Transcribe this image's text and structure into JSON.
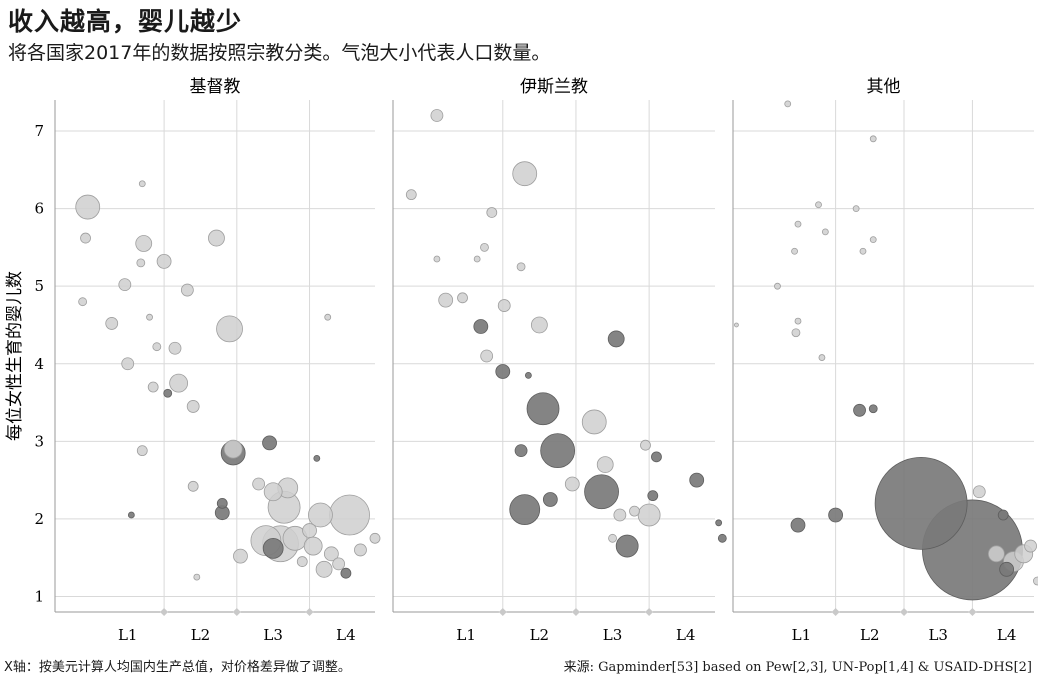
{
  "title": "收入越高，婴儿越少",
  "subtitle": "将各国家2017年的数据按照宗教分类。气泡大小代表人口数量。",
  "footnote": "X轴：按美元计算人均国内生产总值，对价格差异做了调整。",
  "source": "来源: Gapminder[53] based on Pew[2,3], UN-Pop[1,4] & USAID-DHS[2]",
  "colors": {
    "light": "#cfcfcf",
    "dark": "#7a7a7a",
    "grid": "#d9d9d9",
    "axis": "#9a9a9a",
    "marker": "#c9c9c9"
  },
  "chart_data": {
    "type": "scatter",
    "ylabel": "每位女性生育的婴儿数",
    "ylim": [
      0.8,
      7.4
    ],
    "yticks": [
      1,
      2,
      3,
      4,
      5,
      6,
      7
    ],
    "xlim": [
      0,
      4.4
    ],
    "level_boundaries": [
      1.5,
      2.5,
      3.5
    ],
    "xtick_labels": [
      {
        "label": "L1",
        "x": 1.0
      },
      {
        "label": "L2",
        "x": 2.0
      },
      {
        "label": "L3",
        "x": 3.0
      },
      {
        "label": "L4",
        "x": 4.0
      }
    ],
    "grid": true,
    "panels": [
      {
        "name": "基督教",
        "points": [
          {
            "x": 0.45,
            "y": 6.02,
            "r": 12,
            "dark": false
          },
          {
            "x": 1.2,
            "y": 6.32,
            "r": 3,
            "dark": false
          },
          {
            "x": 0.42,
            "y": 5.62,
            "r": 5,
            "dark": false
          },
          {
            "x": 1.22,
            "y": 5.55,
            "r": 8,
            "dark": false
          },
          {
            "x": 1.5,
            "y": 5.32,
            "r": 7,
            "dark": false
          },
          {
            "x": 2.22,
            "y": 5.62,
            "r": 8,
            "dark": false
          },
          {
            "x": 1.18,
            "y": 5.3,
            "r": 4,
            "dark": false
          },
          {
            "x": 0.96,
            "y": 5.02,
            "r": 6,
            "dark": false
          },
          {
            "x": 1.82,
            "y": 4.95,
            "r": 6,
            "dark": false
          },
          {
            "x": 0.38,
            "y": 4.8,
            "r": 4,
            "dark": false
          },
          {
            "x": 0.78,
            "y": 4.52,
            "r": 6,
            "dark": false
          },
          {
            "x": 1.3,
            "y": 4.6,
            "r": 3,
            "dark": false
          },
          {
            "x": 2.4,
            "y": 4.45,
            "r": 13,
            "dark": false
          },
          {
            "x": 1.65,
            "y": 4.2,
            "r": 6,
            "dark": false
          },
          {
            "x": 1.0,
            "y": 4.0,
            "r": 6,
            "dark": false
          },
          {
            "x": 1.4,
            "y": 4.22,
            "r": 4,
            "dark": false
          },
          {
            "x": 1.7,
            "y": 3.75,
            "r": 9,
            "dark": false
          },
          {
            "x": 1.35,
            "y": 3.7,
            "r": 5,
            "dark": false
          },
          {
            "x": 1.55,
            "y": 3.62,
            "r": 4,
            "dark": true
          },
          {
            "x": 1.9,
            "y": 3.45,
            "r": 6,
            "dark": false
          },
          {
            "x": 2.45,
            "y": 2.9,
            "r": 9,
            "dark": false
          },
          {
            "x": 2.45,
            "y": 2.85,
            "r": 12,
            "dark": true
          },
          {
            "x": 2.95,
            "y": 2.98,
            "r": 7,
            "dark": true
          },
          {
            "x": 1.2,
            "y": 2.88,
            "r": 5,
            "dark": false
          },
          {
            "x": 2.8,
            "y": 2.45,
            "r": 6,
            "dark": false
          },
          {
            "x": 3.0,
            "y": 2.35,
            "r": 9,
            "dark": false
          },
          {
            "x": 3.2,
            "y": 2.4,
            "r": 10,
            "dark": false
          },
          {
            "x": 1.9,
            "y": 2.42,
            "r": 5,
            "dark": false
          },
          {
            "x": 2.3,
            "y": 2.2,
            "r": 5,
            "dark": true
          },
          {
            "x": 2.3,
            "y": 2.08,
            "r": 7,
            "dark": true
          },
          {
            "x": 3.15,
            "y": 2.15,
            "r": 16,
            "dark": false
          },
          {
            "x": 3.5,
            "y": 1.85,
            "r": 7,
            "dark": false
          },
          {
            "x": 3.65,
            "y": 2.05,
            "r": 12,
            "dark": false
          },
          {
            "x": 4.05,
            "y": 2.05,
            "r": 20,
            "dark": false
          },
          {
            "x": 2.9,
            "y": 1.72,
            "r": 15,
            "dark": false
          },
          {
            "x": 3.1,
            "y": 1.68,
            "r": 18,
            "dark": false
          },
          {
            "x": 3.3,
            "y": 1.75,
            "r": 12,
            "dark": false
          },
          {
            "x": 3.55,
            "y": 1.65,
            "r": 9,
            "dark": false
          },
          {
            "x": 3.0,
            "y": 1.62,
            "r": 10,
            "dark": true
          },
          {
            "x": 2.55,
            "y": 1.52,
            "r": 7,
            "dark": false
          },
          {
            "x": 3.8,
            "y": 1.55,
            "r": 7,
            "dark": false
          },
          {
            "x": 3.9,
            "y": 1.42,
            "r": 6,
            "dark": false
          },
          {
            "x": 3.7,
            "y": 1.35,
            "r": 8,
            "dark": false
          },
          {
            "x": 4.0,
            "y": 1.3,
            "r": 5,
            "dark": true
          },
          {
            "x": 3.4,
            "y": 1.45,
            "r": 5,
            "dark": false
          },
          {
            "x": 4.2,
            "y": 1.6,
            "r": 6,
            "dark": false
          },
          {
            "x": 4.4,
            "y": 1.75,
            "r": 5,
            "dark": false
          },
          {
            "x": 1.95,
            "y": 1.25,
            "r": 3,
            "dark": false
          },
          {
            "x": 1.05,
            "y": 2.05,
            "r": 3,
            "dark": true
          },
          {
            "x": 3.6,
            "y": 2.78,
            "r": 3,
            "dark": true
          },
          {
            "x": 3.75,
            "y": 4.6,
            "r": 3,
            "dark": false
          }
        ]
      },
      {
        "name": "伊斯兰教",
        "points": [
          {
            "x": 0.6,
            "y": 7.2,
            "r": 6,
            "dark": false
          },
          {
            "x": 1.8,
            "y": 6.45,
            "r": 12,
            "dark": false
          },
          {
            "x": 0.25,
            "y": 6.18,
            "r": 5,
            "dark": false
          },
          {
            "x": 1.35,
            "y": 5.95,
            "r": 5,
            "dark": false
          },
          {
            "x": 1.25,
            "y": 5.5,
            "r": 4,
            "dark": false
          },
          {
            "x": 0.6,
            "y": 5.35,
            "r": 3,
            "dark": false
          },
          {
            "x": 1.75,
            "y": 5.25,
            "r": 4,
            "dark": false
          },
          {
            "x": 1.15,
            "y": 5.35,
            "r": 3,
            "dark": false
          },
          {
            "x": 0.72,
            "y": 4.82,
            "r": 7,
            "dark": false
          },
          {
            "x": 0.95,
            "y": 4.85,
            "r": 5,
            "dark": false
          },
          {
            "x": 1.52,
            "y": 4.75,
            "r": 6,
            "dark": false
          },
          {
            "x": 1.2,
            "y": 4.48,
            "r": 7,
            "dark": true
          },
          {
            "x": 2.0,
            "y": 4.5,
            "r": 8,
            "dark": false
          },
          {
            "x": 3.05,
            "y": 4.32,
            "r": 8,
            "dark": true
          },
          {
            "x": 1.28,
            "y": 4.1,
            "r": 6,
            "dark": false
          },
          {
            "x": 1.5,
            "y": 3.9,
            "r": 7,
            "dark": true
          },
          {
            "x": 2.05,
            "y": 3.42,
            "r": 16,
            "dark": true
          },
          {
            "x": 2.75,
            "y": 3.25,
            "r": 12,
            "dark": false
          },
          {
            "x": 2.25,
            "y": 2.88,
            "r": 17,
            "dark": true
          },
          {
            "x": 1.75,
            "y": 2.88,
            "r": 6,
            "dark": true
          },
          {
            "x": 2.9,
            "y": 2.7,
            "r": 8,
            "dark": false
          },
          {
            "x": 2.45,
            "y": 2.45,
            "r": 7,
            "dark": false
          },
          {
            "x": 2.85,
            "y": 2.35,
            "r": 17,
            "dark": true
          },
          {
            "x": 2.15,
            "y": 2.25,
            "r": 7,
            "dark": true
          },
          {
            "x": 1.8,
            "y": 2.12,
            "r": 15,
            "dark": true
          },
          {
            "x": 3.5,
            "y": 2.05,
            "r": 11,
            "dark": false
          },
          {
            "x": 3.1,
            "y": 2.05,
            "r": 6,
            "dark": false
          },
          {
            "x": 3.55,
            "y": 2.3,
            "r": 5,
            "dark": true
          },
          {
            "x": 3.6,
            "y": 2.8,
            "r": 5,
            "dark": true
          },
          {
            "x": 3.45,
            "y": 2.95,
            "r": 5,
            "dark": false
          },
          {
            "x": 4.15,
            "y": 2.5,
            "r": 7,
            "dark": true
          },
          {
            "x": 3.2,
            "y": 1.65,
            "r": 11,
            "dark": true
          },
          {
            "x": 3.3,
            "y": 2.1,
            "r": 5,
            "dark": false
          },
          {
            "x": 3.0,
            "y": 1.75,
            "r": 4,
            "dark": false
          },
          {
            "x": 4.5,
            "y": 1.75,
            "r": 4,
            "dark": true
          },
          {
            "x": 4.45,
            "y": 1.95,
            "r": 3,
            "dark": true
          },
          {
            "x": 1.85,
            "y": 3.85,
            "r": 3,
            "dark": true
          }
        ]
      },
      {
        "name": "其他",
        "points": [
          {
            "x": 0.8,
            "y": 7.35,
            "r": 3,
            "dark": false
          },
          {
            "x": 2.05,
            "y": 6.9,
            "r": 3,
            "dark": false
          },
          {
            "x": 1.25,
            "y": 6.05,
            "r": 3,
            "dark": false
          },
          {
            "x": 1.8,
            "y": 6.0,
            "r": 3,
            "dark": false
          },
          {
            "x": 0.95,
            "y": 5.8,
            "r": 3,
            "dark": false
          },
          {
            "x": 1.35,
            "y": 5.7,
            "r": 3,
            "dark": false
          },
          {
            "x": 2.05,
            "y": 5.6,
            "r": 3,
            "dark": false
          },
          {
            "x": 0.9,
            "y": 5.45,
            "r": 3,
            "dark": false
          },
          {
            "x": 1.9,
            "y": 5.45,
            "r": 3,
            "dark": false
          },
          {
            "x": 0.65,
            "y": 5.0,
            "r": 3,
            "dark": false
          },
          {
            "x": 0.95,
            "y": 4.55,
            "r": 3,
            "dark": false
          },
          {
            "x": 0.92,
            "y": 4.4,
            "r": 4,
            "dark": false
          },
          {
            "x": 1.3,
            "y": 4.08,
            "r": 3,
            "dark": false
          },
          {
            "x": 0.05,
            "y": 4.5,
            "r": 2,
            "dark": false
          },
          {
            "x": 1.85,
            "y": 3.4,
            "r": 6,
            "dark": true
          },
          {
            "x": 2.05,
            "y": 3.42,
            "r": 4,
            "dark": true
          },
          {
            "x": 1.5,
            "y": 2.05,
            "r": 7,
            "dark": true
          },
          {
            "x": 0.95,
            "y": 1.92,
            "r": 7,
            "dark": true
          },
          {
            "x": 2.75,
            "y": 2.2,
            "r": 46,
            "dark": true
          },
          {
            "x": 3.5,
            "y": 1.6,
            "r": 50,
            "dark": true
          },
          {
            "x": 3.6,
            "y": 2.35,
            "r": 6,
            "dark": false
          },
          {
            "x": 3.85,
            "y": 1.55,
            "r": 8,
            "dark": false
          },
          {
            "x": 4.1,
            "y": 1.45,
            "r": 10,
            "dark": false
          },
          {
            "x": 4.25,
            "y": 1.55,
            "r": 9,
            "dark": false
          },
          {
            "x": 4.0,
            "y": 1.35,
            "r": 7,
            "dark": true
          },
          {
            "x": 4.35,
            "y": 1.65,
            "r": 6,
            "dark": false
          },
          {
            "x": 4.6,
            "y": 1.3,
            "r": 5,
            "dark": true
          },
          {
            "x": 3.95,
            "y": 2.05,
            "r": 5,
            "dark": true
          },
          {
            "x": 4.45,
            "y": 1.2,
            "r": 4,
            "dark": false
          }
        ]
      }
    ]
  }
}
